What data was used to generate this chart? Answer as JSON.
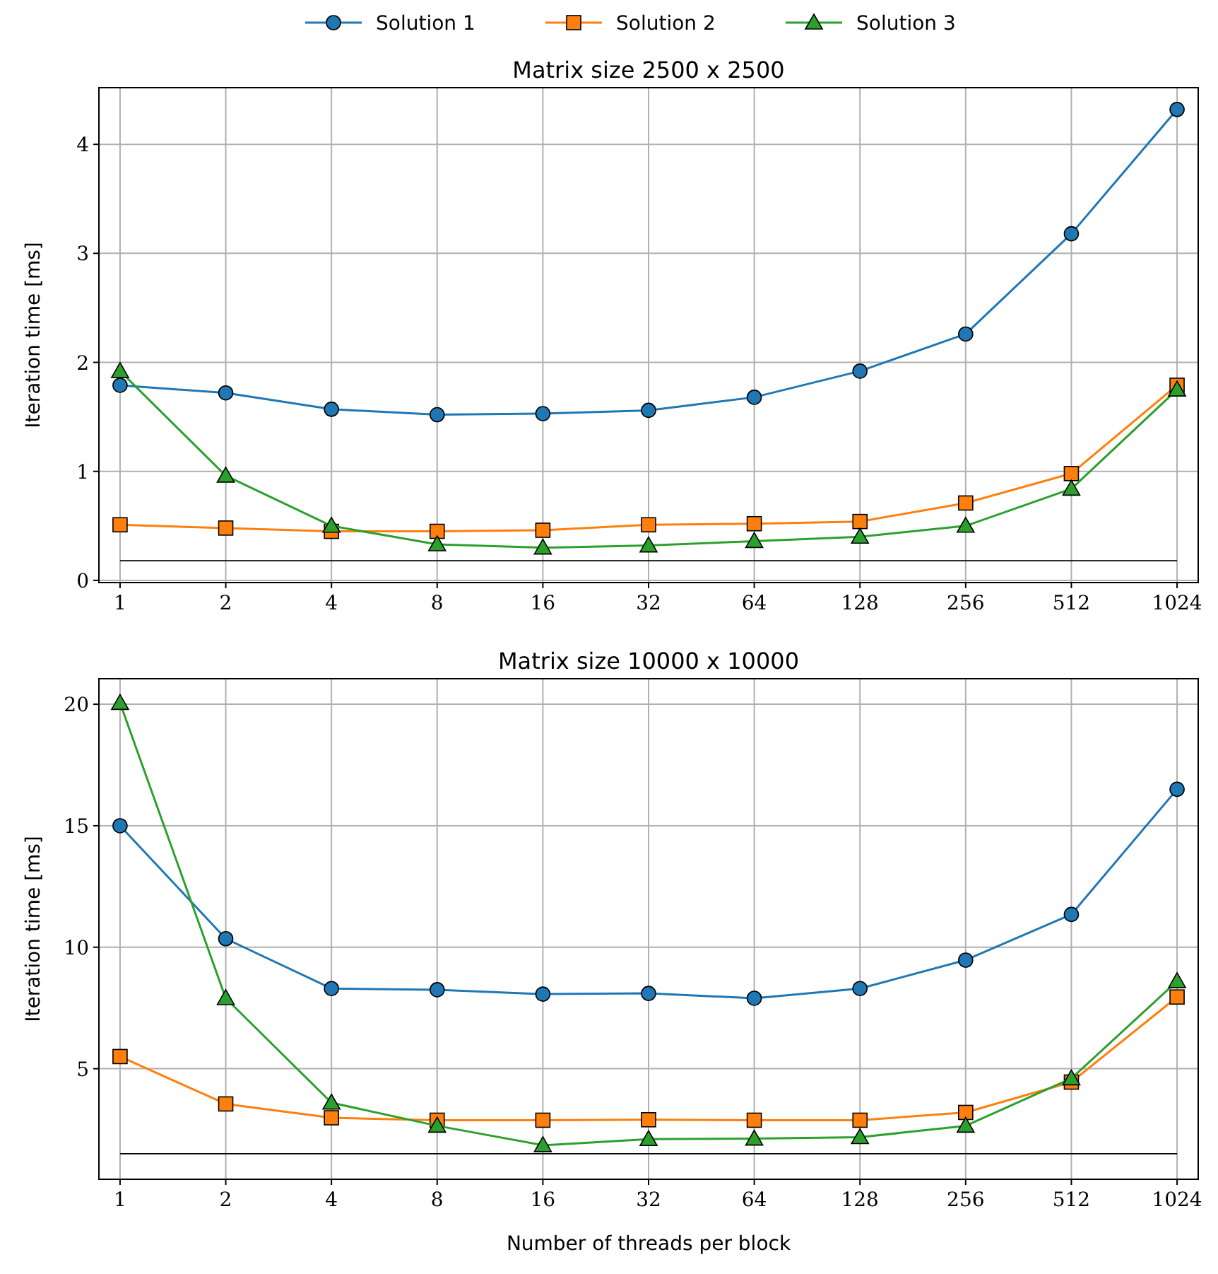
{
  "chart_data": [
    {
      "type": "line",
      "title": "Matrix size 2500 x 2500",
      "ylabel": "Iteration time [ms]",
      "categories": [
        "1",
        "2",
        "4",
        "8",
        "16",
        "32",
        "64",
        "128",
        "256",
        "512",
        "1024"
      ],
      "ylim": [
        -0.02,
        4.52
      ],
      "yticks": [
        0,
        1,
        2,
        3,
        4
      ],
      "grid": true,
      "legend": "top",
      "series": [
        {
          "color": "#000000",
          "values": [
            0.18,
            0.18,
            0.18,
            0.18,
            0.18,
            0.18,
            0.18,
            0.18,
            0.18,
            0.18,
            0.18
          ],
          "marker": "none"
        },
        {
          "name": "Solution 1",
          "color": "#1f77b4",
          "marker": "circle",
          "values": [
            1.79,
            1.72,
            1.57,
            1.52,
            1.53,
            1.56,
            1.68,
            1.92,
            2.26,
            3.18,
            4.32
          ]
        },
        {
          "name": "Solution 2",
          "color": "#ff7f0e",
          "marker": "square",
          "values": [
            0.51,
            0.48,
            0.45,
            0.45,
            0.46,
            0.51,
            0.52,
            0.54,
            0.71,
            0.98,
            1.79
          ]
        },
        {
          "name": "Solution 3",
          "color": "#2ca02c",
          "marker": "triangle",
          "values": [
            1.92,
            0.96,
            0.5,
            0.33,
            0.3,
            0.32,
            0.36,
            0.4,
            0.5,
            0.84,
            1.75
          ]
        }
      ]
    },
    {
      "type": "line",
      "title": "Matrix size 10000 x 10000",
      "ylabel": "Iteration time [ms]",
      "xlabel": "Number of threads per block",
      "categories": [
        "1",
        "2",
        "4",
        "8",
        "16",
        "32",
        "64",
        "128",
        "256",
        "512",
        "1024"
      ],
      "ylim": [
        0.45,
        21.05
      ],
      "yticks": [
        5,
        10,
        15,
        20
      ],
      "grid": true,
      "series": [
        {
          "color": "#000000",
          "values": [
            1.5,
            1.5,
            1.5,
            1.5,
            1.5,
            1.5,
            1.5,
            1.5,
            1.5,
            1.5,
            1.5
          ],
          "marker": "none"
        },
        {
          "color": "#1f77b4",
          "marker": "circle",
          "values": [
            15.0,
            10.35,
            8.3,
            8.25,
            8.07,
            8.1,
            7.9,
            8.3,
            9.47,
            11.35,
            16.5
          ]
        },
        {
          "color": "#ff7f0e",
          "marker": "square",
          "values": [
            5.5,
            3.55,
            2.98,
            2.88,
            2.88,
            2.9,
            2.88,
            2.88,
            3.2,
            4.45,
            7.95
          ]
        },
        {
          "color": "#2ca02c",
          "marker": "triangle",
          "values": [
            20.05,
            7.9,
            3.6,
            2.65,
            1.85,
            2.1,
            2.12,
            2.18,
            2.65,
            4.6,
            8.6
          ]
        }
      ]
    }
  ]
}
